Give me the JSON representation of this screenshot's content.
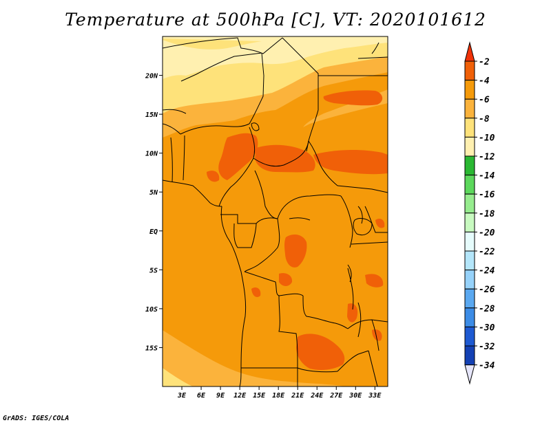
{
  "title": "Temperature at 500hPa [C], VT: 2020101612",
  "credit": "GrADS: IGES/COLA",
  "map": {
    "lon_range": [
      0,
      35
    ],
    "lat_range": [
      -20,
      25
    ],
    "x_ticks": [
      "3E",
      "6E",
      "9E",
      "12E",
      "15E",
      "18E",
      "21E",
      "24E",
      "27E",
      "30E",
      "33E"
    ],
    "y_ticks": [
      "20N",
      "15N",
      "10N",
      "5N",
      "EQ",
      "5S",
      "10S",
      "15S"
    ],
    "fill_colors": {
      "-4_to_-2": "#f06008",
      "-6_to_-4": "#f59a0a",
      "-8_to_-6": "#fbb33c",
      "-10_to_-8": "#fee27a",
      "-12_to_-10": "#fff0b0"
    }
  },
  "colorbar": {
    "labels": [
      "-2",
      "-4",
      "-6",
      "-8",
      "-10",
      "-12",
      "-14",
      "-16",
      "-18",
      "-20",
      "-22",
      "-24",
      "-26",
      "-28",
      "-30",
      "-32",
      "-34"
    ],
    "colors": [
      "#f03208",
      "#f06008",
      "#f59a0a",
      "#fbb33c",
      "#fee27a",
      "#fff0b0",
      "#2ab832",
      "#5cd85c",
      "#96ec8e",
      "#c8fac0",
      "#e6fcfc",
      "#b4e6fa",
      "#96d2fa",
      "#5aa8f0",
      "#3c8ce6",
      "#1e5ad2",
      "#1441b4",
      "#0a1e8c",
      "#e6e6fa"
    ]
  }
}
